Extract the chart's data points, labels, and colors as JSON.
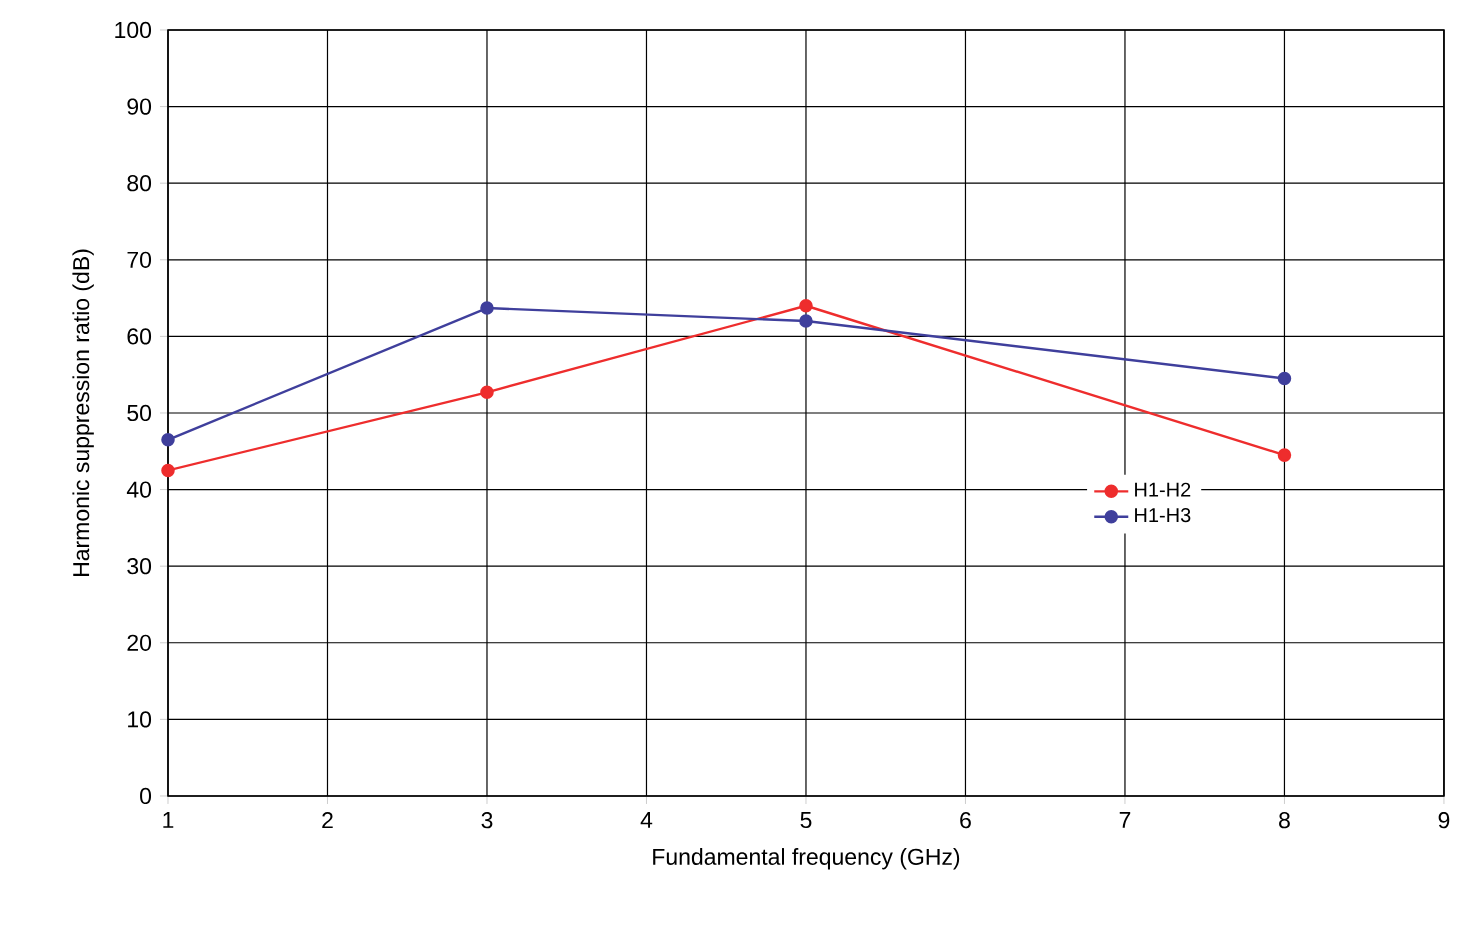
{
  "chart_data": {
    "type": "line",
    "xlabel": "Fundamental frequency (GHz)",
    "ylabel": "Harmonic suppression ratio (dB)",
    "x": [
      1,
      3,
      5,
      8
    ],
    "series": [
      {
        "name": "H1-H2",
        "color": "#ee2d2d",
        "values": [
          42.5,
          52.7,
          64,
          44.5
        ]
      },
      {
        "name": "H1-H3",
        "color": "#3f3f9c",
        "values": [
          46.5,
          63.7,
          62,
          54.5
        ]
      }
    ],
    "xlim": [
      1,
      9
    ],
    "xticks": [
      1,
      2,
      3,
      4,
      5,
      6,
      7,
      8,
      9
    ],
    "ylim": [
      0,
      100
    ],
    "yticks": [
      0,
      10,
      20,
      30,
      40,
      50,
      60,
      70,
      80,
      90,
      100
    ],
    "grid": true,
    "legend": "right",
    "marker": "circle",
    "line_style": "solid"
  }
}
